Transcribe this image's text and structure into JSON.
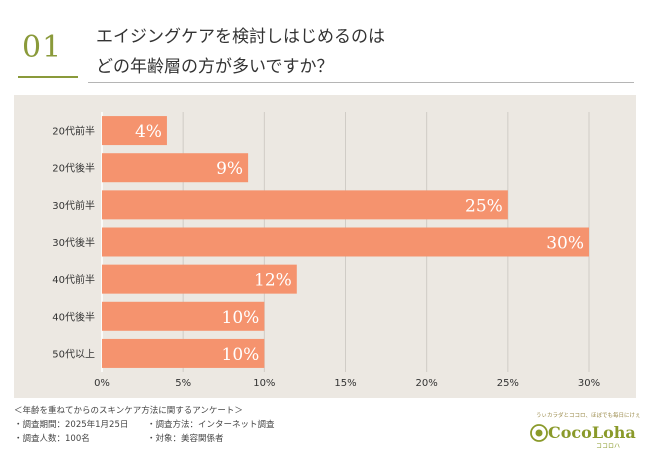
{
  "header": {
    "question_number": "01",
    "title_line1": "エイジングケアを検討しはじめるのは",
    "title_line2": "どの年齢層の方が多いですか？"
  },
  "chart_data": {
    "type": "bar",
    "orientation": "horizontal",
    "categories": [
      "20代前半",
      "20代後半",
      "30代前半",
      "30代後半",
      "40代前半",
      "40代後半",
      "50代以上"
    ],
    "values": [
      4,
      9,
      25,
      30,
      12,
      10,
      10
    ],
    "value_labels": [
      "4%",
      "9%",
      "25%",
      "30%",
      "12%",
      "10%",
      "10%"
    ],
    "xlim": [
      0,
      30
    ],
    "xticks": [
      0,
      5,
      10,
      15,
      20,
      25,
      30
    ],
    "xtick_labels": [
      "0%",
      "5%",
      "10%",
      "15%",
      "20%",
      "25%",
      "30%"
    ],
    "grid": true,
    "bar_color": "#f5936e",
    "panel_color": "#ece8e2"
  },
  "notes": {
    "line1": "＜年齢を重ねてからのスキンケア方法に関するアンケート＞",
    "period": "・調査期間：2025年1月25日",
    "method": "・調査方法：インターネット調査",
    "count": "・調査人数：100名",
    "target": "・対象：美容関係者"
  },
  "logo": {
    "tagline": "うぃカラダとココロ、ほぼでも毎日にけぇ",
    "name": "CocoLoha",
    "sub": "ココロハ",
    "accent": "#8a9a2a"
  }
}
